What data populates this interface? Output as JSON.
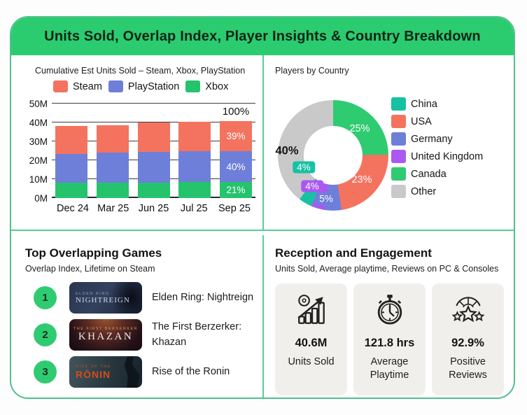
{
  "header": {
    "title": "Units Sold, Overlap Index, Player Insights & Country Breakdown"
  },
  "colors": {
    "accent_green": "#2bcc6f",
    "border_green": "#4fc08d",
    "steam_salmon": "#f4735f",
    "playstation_blue": "#6e7fd9",
    "xbox_green": "#25c46c",
    "china_teal": "#16c2a3",
    "uk_purple": "#aa58f2",
    "canada_green": "#2fcb71",
    "other_gray": "#c9c9c9"
  },
  "chart_data": [
    {
      "type": "bar",
      "stacked": true,
      "title": "Cumulative Est Units Sold – Steam, Xbox, PlayStation",
      "legend": [
        "Steam",
        "PlayStation",
        "Xbox"
      ],
      "legend_position": "top",
      "grid": true,
      "categories": [
        "Dec 24",
        "Mar 25",
        "Jun 25",
        "Jul 25",
        "Sep 25"
      ],
      "series": [
        {
          "name": "Xbox",
          "color": "#25c46c",
          "values": [
            8.0,
            8.0,
            8.3,
            8.4,
            8.5
          ],
          "last_label": "21%"
        },
        {
          "name": "PlayStation",
          "color": "#6e7fd9",
          "values": [
            15.5,
            16.0,
            16.2,
            16.3,
            16.3
          ],
          "last_label": "40%"
        },
        {
          "name": "Steam",
          "color": "#f4735f",
          "values": [
            14.5,
            14.5,
            15.5,
            15.6,
            15.8
          ],
          "last_label": "39%"
        }
      ],
      "total_label": "100%",
      "ylim": [
        0,
        50
      ],
      "ylabel_ticks": [
        "0M",
        "10M",
        "20M",
        "30M",
        "40M",
        "50M"
      ]
    },
    {
      "type": "pie",
      "donut": true,
      "title": "Players by Country",
      "legend_position": "right",
      "slices": [
        {
          "label": "Canada",
          "value": 25,
          "display": "25%",
          "color": "#2fcb71"
        },
        {
          "label": "USA",
          "value": 23,
          "display": "23%",
          "color": "#f4735f"
        },
        {
          "label": "Germany",
          "value": 5,
          "display": "5%",
          "color": "#6e7fd9"
        },
        {
          "label": "United Kingdom",
          "value": 4,
          "display": "4%",
          "color": "#aa58f2"
        },
        {
          "label": "China",
          "value": 4,
          "display": "4%",
          "color": "#16c2a3"
        },
        {
          "label": "Other",
          "value": 40,
          "display": "40%",
          "color": "#c9c9c9"
        }
      ],
      "legend_order": [
        "China",
        "USA",
        "Germany",
        "United Kingdom",
        "Canada",
        "Other"
      ]
    }
  ],
  "games": {
    "title": "Top Overlapping Games",
    "subtitle": "Overlap Index, Lifetime on Steam",
    "items": [
      {
        "rank": "1",
        "name": "Elden Ring: Nightreign",
        "thumb_line1": "ELDEN RING",
        "thumb_line2": "NIGHTREIGN"
      },
      {
        "rank": "2",
        "name": "The First Berzerker: Khazan",
        "thumb_line1": "THE FIRST BERSERKER",
        "thumb_line2": "KHAZAN"
      },
      {
        "rank": "3",
        "name": "Rise of the Ronin",
        "thumb_line1": "RISE OF THE",
        "thumb_line2": "RŌNIN"
      }
    ]
  },
  "stats": {
    "title": "Reception and Engagement",
    "subtitle": "Units Sold, Average playtime, Reviews on PC & Consoles",
    "cards": [
      {
        "icon": "bar-growth-icon",
        "value": "40.6M",
        "label": "Units Sold"
      },
      {
        "icon": "stopwatch-icon",
        "value": "121.8 hrs",
        "label": "Average Playtime"
      },
      {
        "icon": "star-rating-icon",
        "value": "92.9%",
        "label": "Positive Reviews"
      }
    ]
  }
}
